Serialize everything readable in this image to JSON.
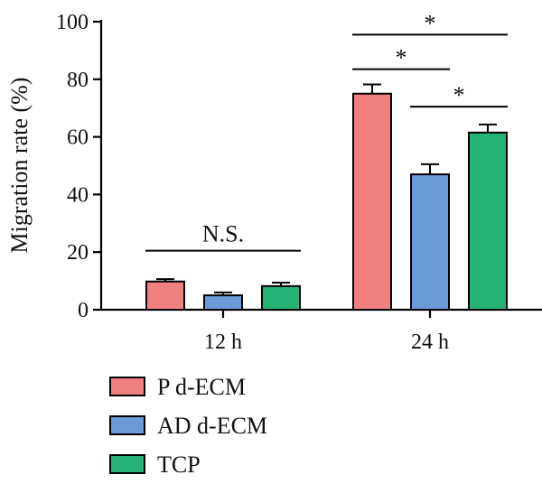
{
  "chart_data": {
    "type": "bar",
    "title": "",
    "xlabel": "",
    "ylabel": "Migration rate (%)",
    "ylim": [
      0,
      100
    ],
    "yticks": [
      0,
      20,
      40,
      60,
      80,
      100
    ],
    "categories": [
      "12 h",
      "24 h"
    ],
    "series": [
      {
        "name": "P d-ECM",
        "color": "#f08080",
        "values": [
          9.8,
          75.0
        ],
        "errors": [
          0.8,
          3.2
        ]
      },
      {
        "name": "AD d-ECM",
        "color": "#6a9bd8",
        "values": [
          5.0,
          47.0
        ],
        "errors": [
          1.0,
          3.5
        ]
      },
      {
        "name": "TCP",
        "color": "#27b376",
        "values": [
          8.2,
          61.5
        ],
        "errors": [
          1.2,
          2.8
        ]
      }
    ],
    "annotations": [
      {
        "group": "12 h",
        "from": "P d-ECM",
        "to": "TCP",
        "label": "N.S.",
        "y": 20.5
      },
      {
        "group": "24 h",
        "from": "P d-ECM",
        "to": "AD d-ECM",
        "label": "*",
        "y": 83.5
      },
      {
        "group": "24 h",
        "from": "AD d-ECM",
        "to": "TCP",
        "label": "*",
        "y": 70.5
      },
      {
        "group": "24 h",
        "from": "P d-ECM",
        "to": "TCP",
        "label": "*",
        "y": 95.5
      }
    ],
    "legend_position": "bottom-left",
    "grid": false
  }
}
